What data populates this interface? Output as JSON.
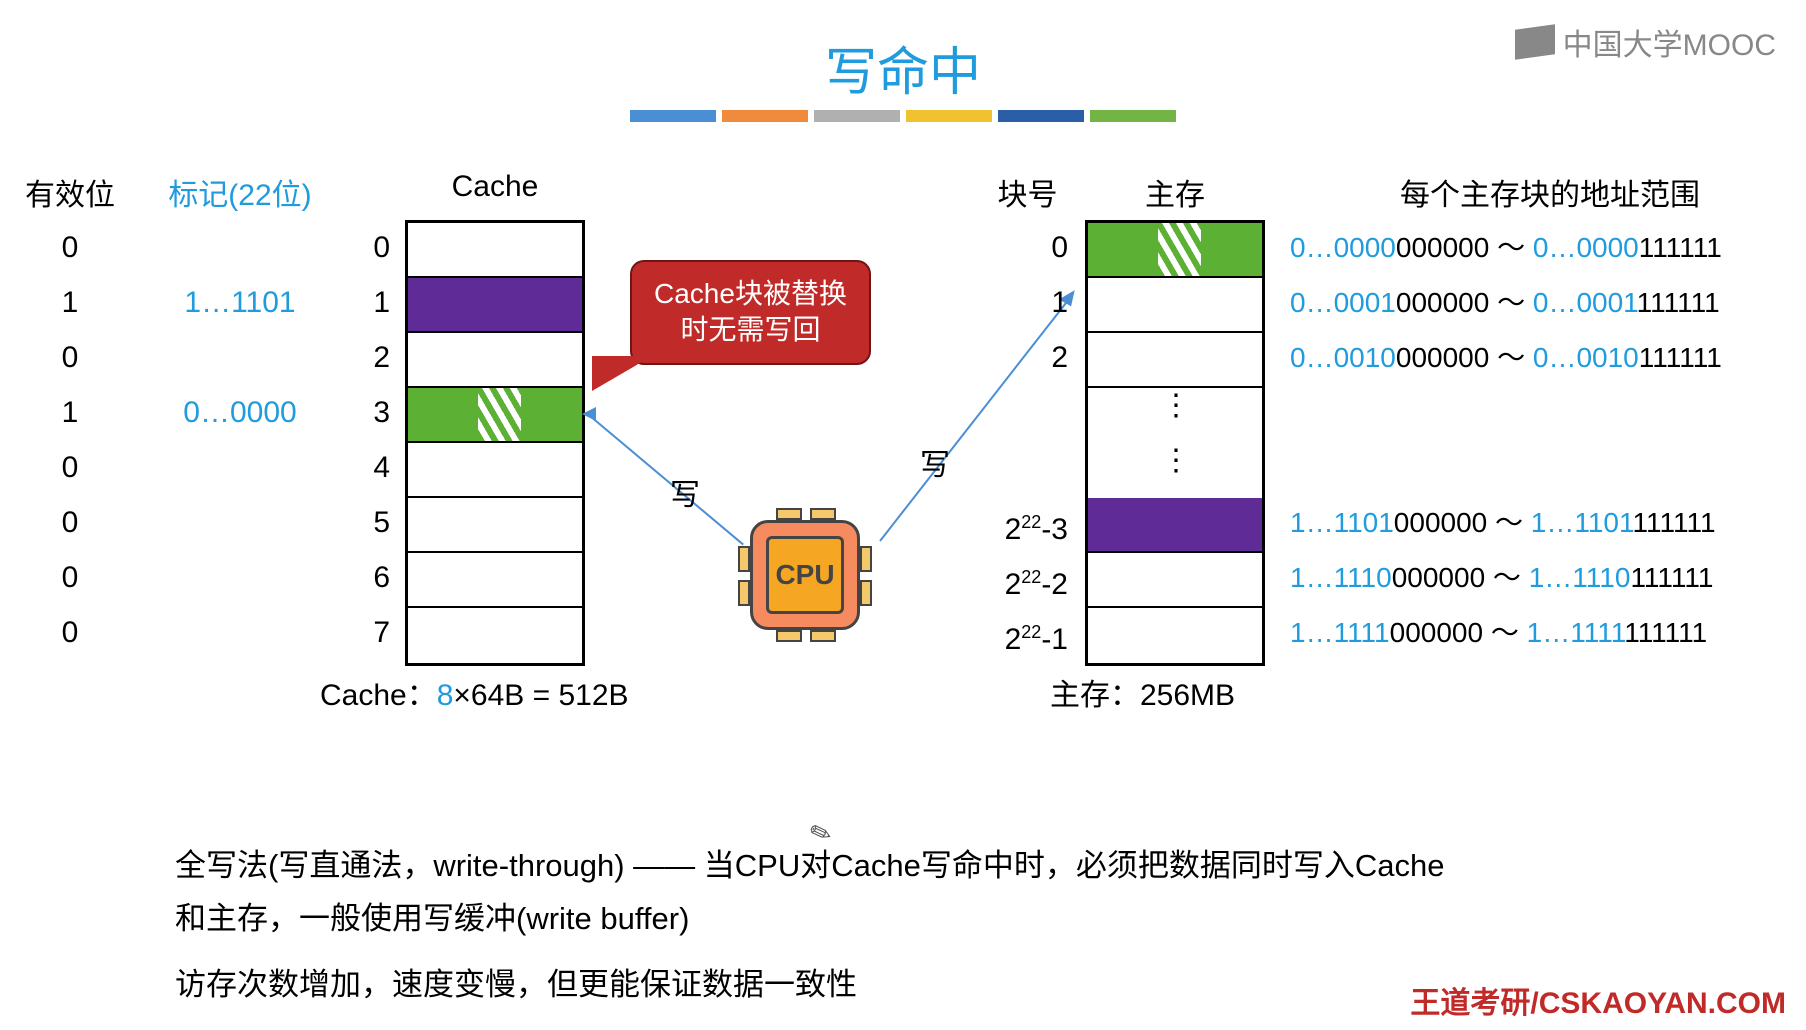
{
  "title": "写命中",
  "logo": "中国大学MOOC",
  "strip_colors": [
    "#4a8fd4",
    "#f08a3c",
    "#b0b0b0",
    "#f0c230",
    "#2a5fa8",
    "#72b545"
  ],
  "headers": {
    "valid": "有效位",
    "tag": "标记(22位)",
    "cache": "Cache",
    "block": "块号",
    "mem": "主存",
    "range": "每个主存块的地址范围"
  },
  "cache": {
    "valid": [
      "0",
      "1",
      "0",
      "1",
      "0",
      "0",
      "0",
      "0"
    ],
    "tags": [
      "",
      "1…1101",
      "",
      "0…0000",
      "",
      "",
      "",
      ""
    ],
    "idx": [
      "0",
      "1",
      "2",
      "3",
      "4",
      "5",
      "6",
      "7"
    ],
    "row_styles": [
      "",
      "purple",
      "",
      "greensplit",
      "",
      "",
      "",
      ""
    ],
    "footer_pre": "Cache：",
    "footer_blue": "8",
    "footer_post": "×64B = 512B"
  },
  "mem": {
    "block_idx": [
      "0",
      "1",
      "2",
      "",
      "",
      "2^22-3",
      "2^22-2",
      "2^22-1"
    ],
    "row_styles": [
      "greensplit",
      "",
      "",
      "dots",
      "dots",
      "purple",
      "",
      ""
    ],
    "ranges": [
      {
        "a": "0…0000",
        "b": "000000",
        "c": "0…0000",
        "d": "111111"
      },
      {
        "a": "0…0001",
        "b": "000000",
        "c": "0…0001",
        "d": "111111"
      },
      {
        "a": "0…0010",
        "b": "000000",
        "c": "0…0010",
        "d": "111111"
      },
      null,
      null,
      {
        "a": "1…1101",
        "b": "000000",
        "c": "1…1101",
        "d": "111111"
      },
      {
        "a": "1…1110",
        "b": "000000",
        "c": "1…1110",
        "d": "111111"
      },
      {
        "a": "1…1111",
        "b": "000000",
        "c": "1…1111",
        "d": "111111"
      }
    ],
    "footer_pre": "主存：",
    "footer_post": "256MB"
  },
  "callout": {
    "line1": "Cache块被替换",
    "line2": "时无需写回"
  },
  "cpu": "CPU",
  "write_label": "写",
  "bottom": {
    "l1": "全写法(写直通法，write-through) —— 当CPU对Cache写命中时，必须把数据同时写入Cache",
    "l2": "和主存，一般使用写缓冲(write buffer)",
    "l3": "访存次数增加，速度变慢，但更能保证数据一致性"
  },
  "red_footer_a": "王道考研/CSKAOYAN.COM",
  "styling": {
    "purple": "#5e2b97",
    "green": "#5cb135",
    "callout_bg": "#c02a28",
    "title_color": "#1f9bde",
    "link_blue": "#1f9bde",
    "arrow_color": "#4a8fd4",
    "font_size_body": 30
  }
}
